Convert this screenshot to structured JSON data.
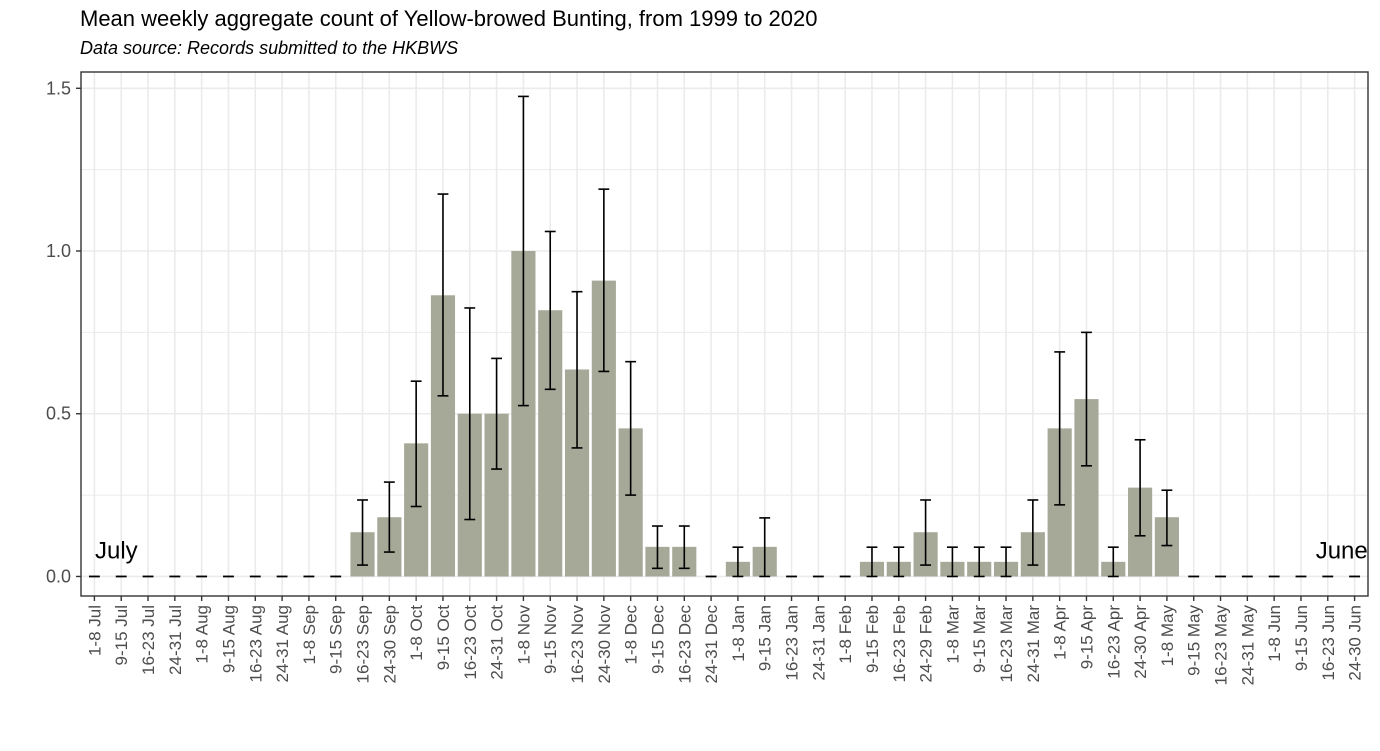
{
  "title": "Mean weekly aggregate count of Yellow-browed Bunting, from 1999 to 2020",
  "subtitle": "Data source: Records submitted to the HKBWS",
  "colors": {
    "bar": "#a6a898",
    "error_bar": "#000000",
    "grid": "#ebebeb",
    "panel_border": "#333333"
  },
  "chart_data": {
    "type": "bar",
    "title": "Mean weekly aggregate count of Yellow-browed Bunting, from 1999 to 2020",
    "subtitle": "Data source: Records submitted to the HKBWS",
    "xlabel": "",
    "ylabel": "",
    "ylim": [
      -0.06,
      1.55
    ],
    "yticks": [
      0.0,
      0.5,
      1.0,
      1.5
    ],
    "ytick_labels": [
      "0.0",
      "0.5",
      "1.0",
      "1.5"
    ],
    "grid": true,
    "categories": [
      "1-8 Jul",
      "9-15 Jul",
      "16-23 Jul",
      "24-31 Jul",
      "1-8 Aug",
      "9-15 Aug",
      "16-23 Aug",
      "24-31 Aug",
      "1-8 Sep",
      "9-15 Sep",
      "16-23 Sep",
      "24-30 Sep",
      "1-8 Oct",
      "9-15 Oct",
      "16-23 Oct",
      "24-31 Oct",
      "1-8 Nov",
      "9-15 Nov",
      "16-23 Nov",
      "24-30 Nov",
      "1-8 Dec",
      "9-15 Dec",
      "16-23 Dec",
      "24-31 Dec",
      "1-8 Jan",
      "9-15 Jan",
      "16-23 Jan",
      "24-31 Jan",
      "1-8 Feb",
      "9-15 Feb",
      "16-23 Feb",
      "24-29 Feb",
      "1-8 Mar",
      "9-15 Mar",
      "16-23 Mar",
      "24-31 Mar",
      "1-8 Apr",
      "9-15 Apr",
      "16-23 Apr",
      "24-30 Apr",
      "1-8 May",
      "9-15 May",
      "16-23 May",
      "24-31 May",
      "1-8 Jun",
      "9-15 Jun",
      "16-23 Jun",
      "24-30 Jun"
    ],
    "values": [
      0,
      0,
      0,
      0,
      0,
      0,
      0,
      0,
      0,
      0,
      0.136,
      0.182,
      0.409,
      0.864,
      0.5,
      0.5,
      1.0,
      0.818,
      0.636,
      0.909,
      0.455,
      0.091,
      0.091,
      0,
      0.045,
      0.091,
      0,
      0,
      0,
      0.045,
      0.045,
      0.136,
      0.045,
      0.045,
      0.045,
      0.136,
      0.455,
      0.545,
      0.045,
      0.273,
      0.182,
      0,
      0,
      0,
      0,
      0,
      0,
      0
    ],
    "error_low": [
      0,
      0,
      0,
      0,
      0,
      0,
      0,
      0,
      0,
      0,
      0.035,
      0.075,
      0.215,
      0.555,
      0.175,
      0.33,
      0.525,
      0.575,
      0.395,
      0.63,
      0.25,
      0.025,
      0.025,
      0,
      0,
      0,
      0,
      0,
      0,
      0,
      0,
      0.035,
      0,
      0,
      0,
      0.035,
      0.22,
      0.34,
      0,
      0.125,
      0.095,
      0,
      0,
      0,
      0,
      0,
      0,
      0
    ],
    "error_high": [
      0,
      0,
      0,
      0,
      0,
      0,
      0,
      0,
      0,
      0,
      0.235,
      0.29,
      0.6,
      1.175,
      0.825,
      0.67,
      1.475,
      1.06,
      0.875,
      1.19,
      0.66,
      0.155,
      0.155,
      0,
      0.09,
      0.18,
      0,
      0,
      0,
      0.09,
      0.09,
      0.235,
      0.09,
      0.09,
      0.09,
      0.235,
      0.69,
      0.75,
      0.09,
      0.42,
      0.265,
      0,
      0,
      0,
      0,
      0,
      0,
      0
    ],
    "annotations": [
      {
        "text": "July",
        "category_index": 0
      },
      {
        "text": "June",
        "category_index": 46
      }
    ]
  }
}
